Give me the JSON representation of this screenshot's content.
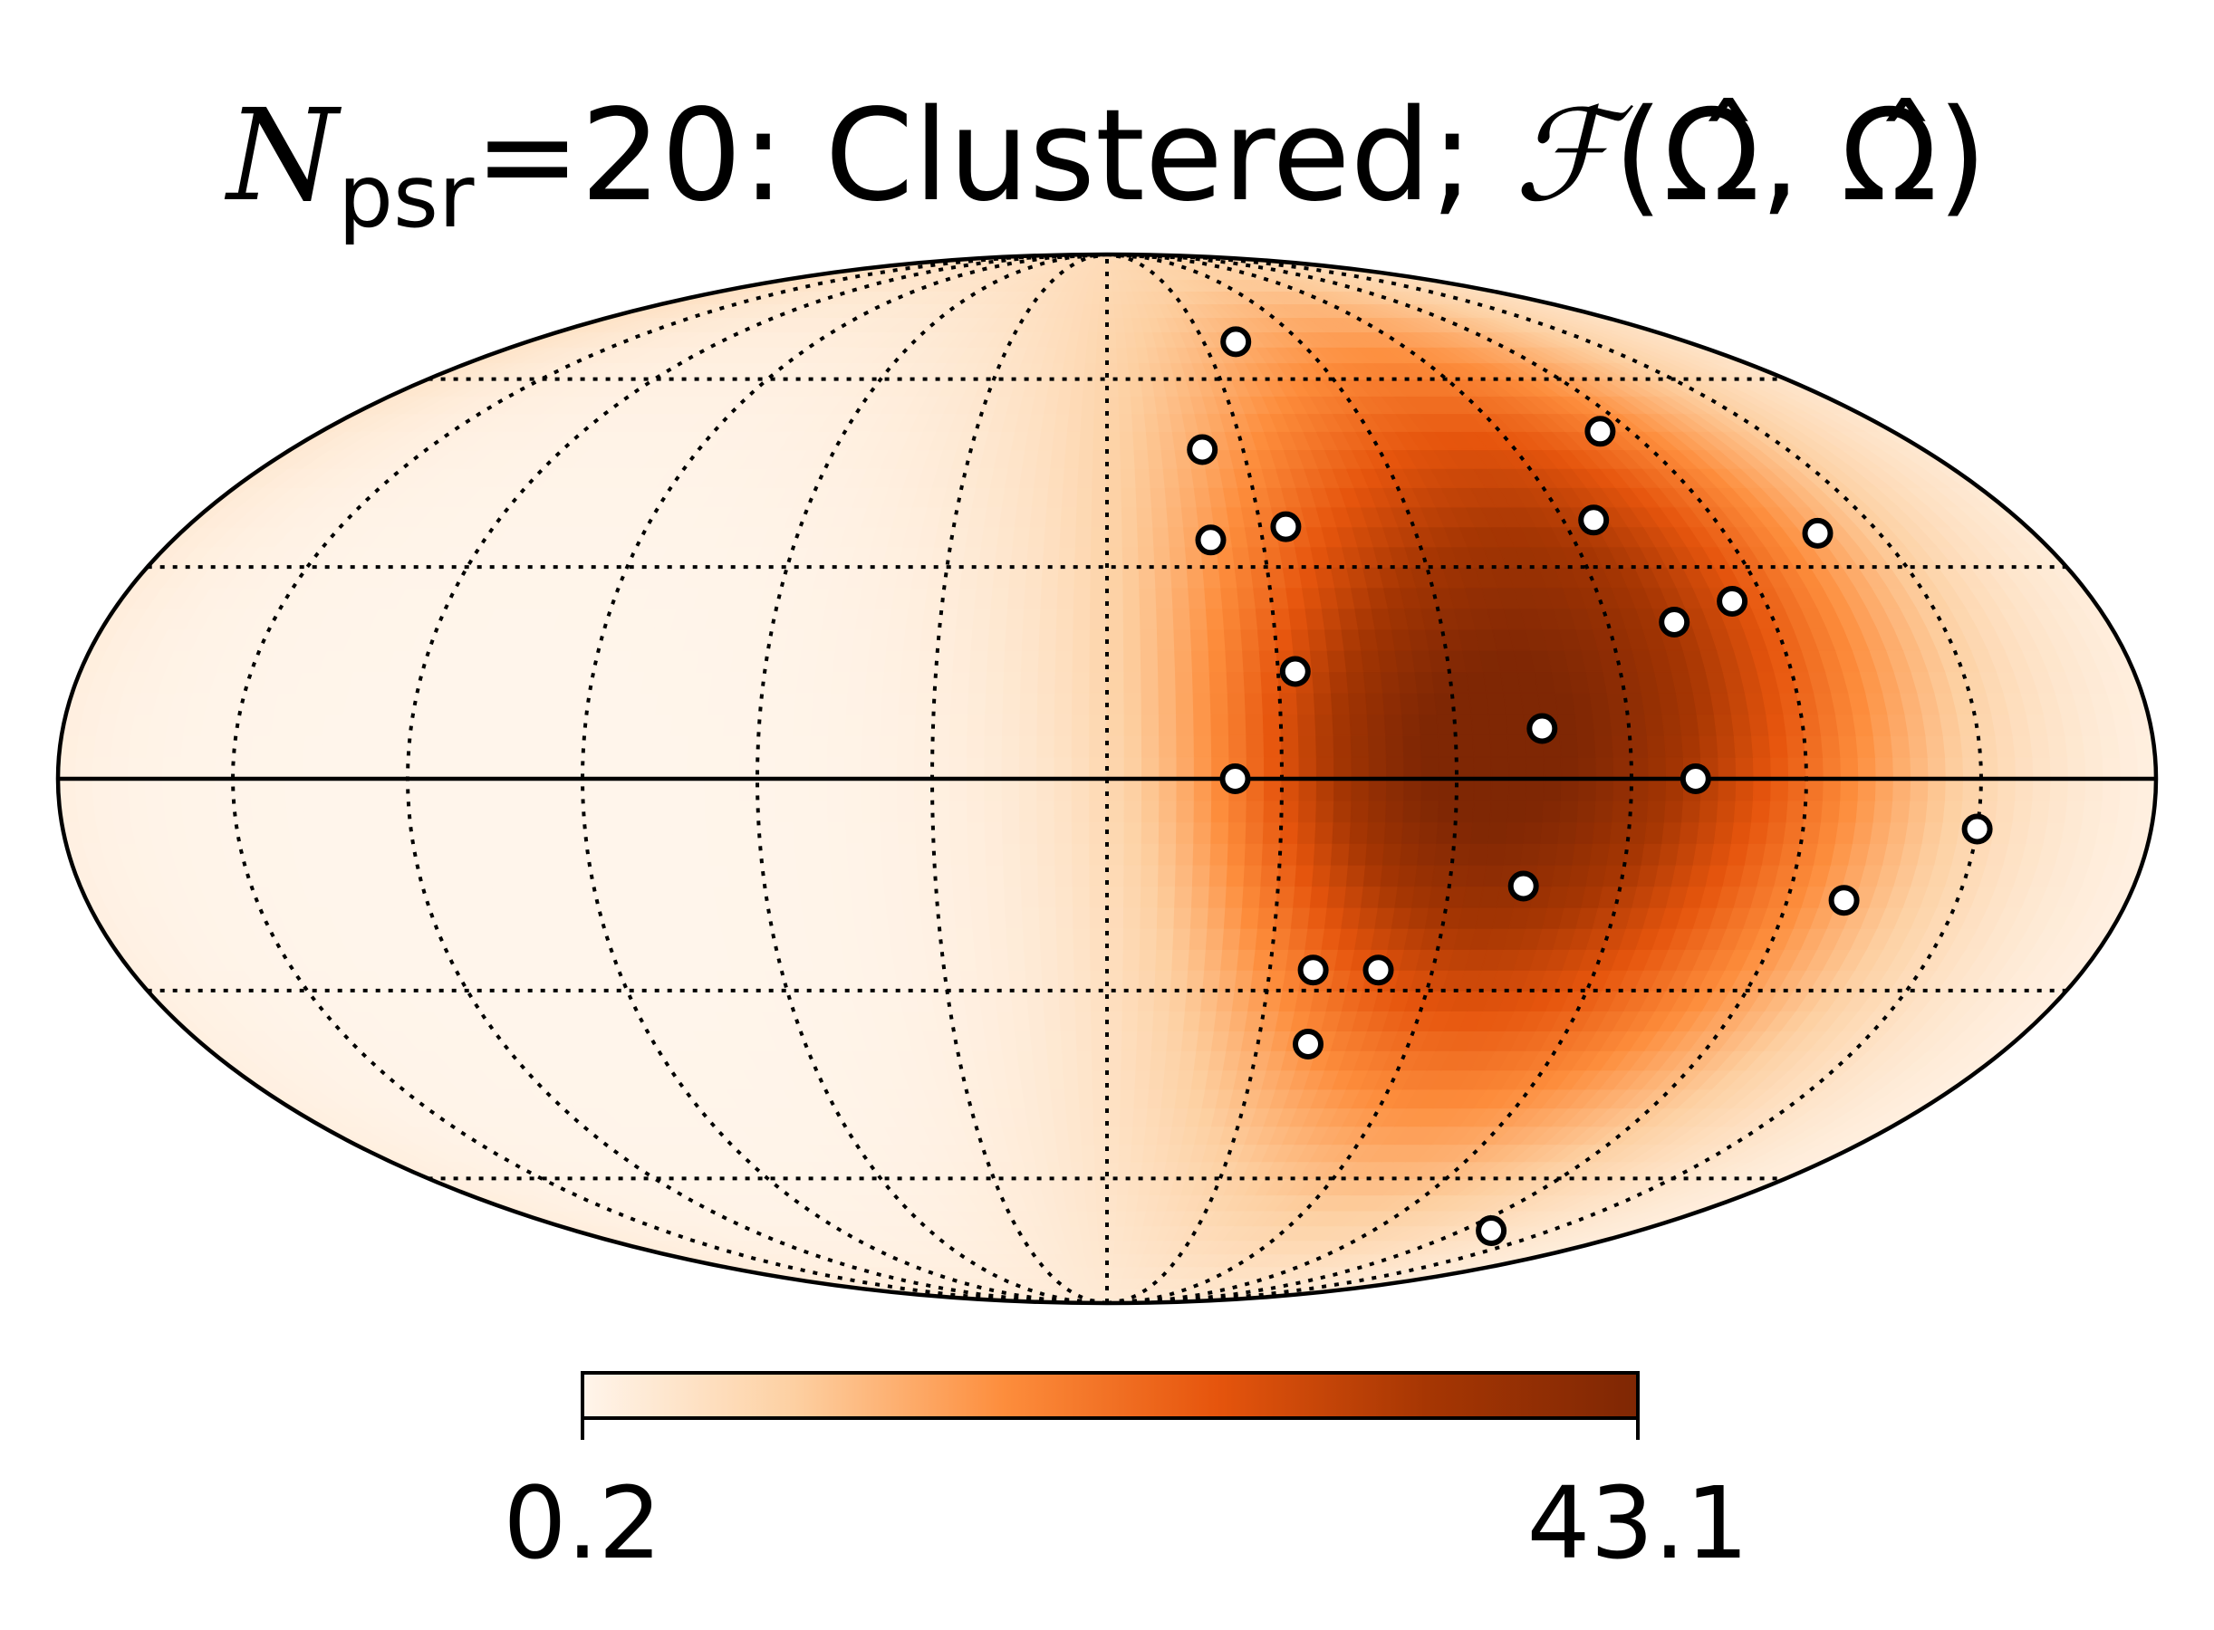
{
  "chart_data": {
    "type": "heatmap",
    "projection": "mollweide",
    "title": {
      "symbol": "N",
      "subscript": "psr",
      "rest": "=20: Clustered; ",
      "func": "ℱ",
      "args": "(Ω̂, Ω̂)"
    },
    "colormap": [
      "#fff5eb",
      "#fdd0a2",
      "#fd8d3c",
      "#e6550d",
      "#a63603",
      "#7f2704"
    ],
    "colorbar": {
      "min": 0.2,
      "max": 43.1,
      "min_label": "0.2",
      "max_label": "43.1"
    },
    "grid": true,
    "graticule": {
      "meridians_deg": [
        -150,
        -120,
        -90,
        -60,
        -30,
        0,
        30,
        60,
        90,
        120,
        150
      ],
      "parallels_deg": [
        -60,
        -30,
        0,
        30,
        60
      ]
    },
    "field": {
      "floor": 0.2,
      "blobs": [
        {
          "lon": 74,
          "lat": 15,
          "amp": 32,
          "sigma": 40
        },
        {
          "lon": 60,
          "lat": -3,
          "amp": 8,
          "sigma": 20
        },
        {
          "lon": 38,
          "lat": 3,
          "amp": 6,
          "sigma": 18
        },
        {
          "lon": 105,
          "lat": 30,
          "amp": 5,
          "sigma": 25
        },
        {
          "lon": 90,
          "lat": -20,
          "amp": 7,
          "sigma": 35
        },
        {
          "lon": 50,
          "lat": -45,
          "amp": 3,
          "sigma": 25
        }
      ]
    },
    "pulsars": [
      {
        "lon": 40,
        "lat": 67
      },
      {
        "lon": 21,
        "lat": 48
      },
      {
        "lon": 20,
        "lat": 34
      },
      {
        "lon": 35,
        "lat": 36
      },
      {
        "lon": 33,
        "lat": 15
      },
      {
        "lon": 22,
        "lat": 0
      },
      {
        "lon": 75,
        "lat": 7
      },
      {
        "lon": 73,
        "lat": -15
      },
      {
        "lon": 96,
        "lat": 37
      },
      {
        "lon": 113,
        "lat": 51
      },
      {
        "lon": 102,
        "lat": 22
      },
      {
        "lon": 138,
        "lat": 35
      },
      {
        "lon": 114,
        "lat": 25
      },
      {
        "lon": 101,
        "lat": 0
      },
      {
        "lon": 150,
        "lat": -7
      },
      {
        "lon": 130,
        "lat": -17
      },
      {
        "lon": 38,
        "lat": -27
      },
      {
        "lon": 50,
        "lat": -27
      },
      {
        "lon": 40,
        "lat": -38
      },
      {
        "lon": 130,
        "lat": -70
      }
    ]
  }
}
